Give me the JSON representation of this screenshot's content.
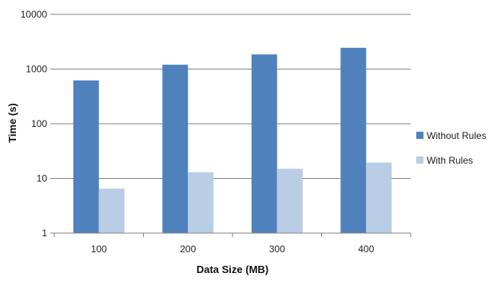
{
  "chart_data": {
    "type": "bar",
    "title": "",
    "xlabel": "Data Size (MB)",
    "ylabel": "Time (s)",
    "yscale": "log",
    "ylim": [
      1,
      10000
    ],
    "yticks": [
      "1",
      "10",
      "100",
      "1000",
      "10000"
    ],
    "categories": [
      "100",
      "200",
      "300",
      "400"
    ],
    "series": [
      {
        "name": "Without Rules",
        "color": "#4f81bd",
        "values": [
          620,
          1200,
          1850,
          2450
        ]
      },
      {
        "name": "With Rules",
        "color": "#b9cde5",
        "values": [
          6.5,
          13,
          15,
          19.5
        ]
      }
    ],
    "grid": "horizontal",
    "legend_position": "right"
  }
}
